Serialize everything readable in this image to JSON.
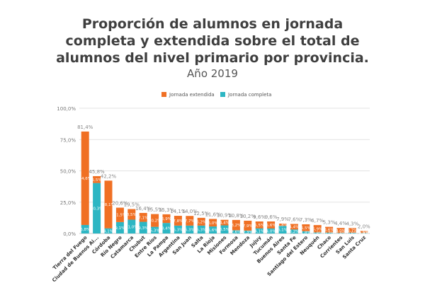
{
  "chart_data": {
    "type": "bar",
    "stacked": true,
    "title_lines": [
      "Proporción de alumnos en jornada",
      "completa y extendida sobre el total de",
      "alumnos del nivel primario por provincia."
    ],
    "subtitle": "Año 2019",
    "ylim": [
      0,
      100
    ],
    "yticks": [
      "0,0%",
      "25,0%",
      "50,0%",
      "75,0%",
      "100,0%"
    ],
    "legend_position": "top",
    "grid": true,
    "categories": [
      "Tierra del Fuego",
      "Ciudad de Buenos Ai...",
      "Córdoba",
      "Río Negro",
      "Catamarca",
      "Chubut",
      "Entre Ríos",
      "La Pampa",
      "Argentina",
      "San Juan",
      "Salta",
      "La Rioja",
      "Misiones",
      "Formosa",
      "Mendoza",
      "Jujuy",
      "Tucumán",
      "Buenos Aires",
      "Santa Fe",
      "Santiago del Estero",
      "Neuquén",
      "Chaco",
      "Corrientes",
      "San Luis",
      "Santa Cruz"
    ],
    "totals": [
      "81,4%",
      "45,8%",
      "42,2%",
      "20,6%",
      "19,5%",
      "16,4%",
      "15,5%",
      "15,3%",
      "14,1%",
      "14,0%",
      "12,5%",
      "11,6%",
      "10,9%",
      "10,8%",
      "10,2%",
      "9,6%",
      "9,6%",
      "7,9%",
      "7,6%",
      "7,3%",
      "6,7%",
      "5,3%",
      "4,4%",
      "4,3%",
      "2,0%"
    ],
    "series": [
      {
        "name": "Jornada extendida",
        "color": "#f07024",
        "values": [
          74.6,
          5.5,
          38.1,
          11.5,
          8.5,
          7.1,
          10.2,
          6.9,
          7.8,
          7.7,
          6.2,
          6.0,
          4.4,
          8.2,
          7.9,
          5.5,
          5.6,
          1.8,
          4.4,
          5.5,
          5.9,
          4.6,
          4.0,
          3.7,
          1.6
        ],
        "labels": [
          "74,6%",
          "5,5%",
          "38,1%",
          "11,5%",
          "8,5%",
          "7,1%",
          "10,2%",
          "6,9%",
          "7,8%",
          "7,7%",
          "6,2%",
          "6,0%",
          "4,4%",
          "8,2%",
          "7,9%",
          "5,5%",
          "5,6%",
          "1,8%",
          "4,4%",
          "5,5%",
          "5,9%",
          "4,6%",
          "4,0%",
          "3,7%",
          "1,6%"
        ]
      },
      {
        "name": "Jornada completa",
        "color": "#2db6c3",
        "values": [
          6.8,
          40.3,
          4.1,
          9.1,
          11.0,
          9.3,
          5.3,
          8.4,
          6.3,
          6.3,
          6.3,
          5.6,
          6.5,
          2.6,
          2.3,
          4.1,
          4.0,
          6.1,
          3.2,
          1.8,
          0.8,
          0.7,
          0.4,
          0.6,
          0.4
        ],
        "labels": [
          "6,8%",
          "40,3%",
          "4,1%",
          "9,1%",
          "11,0%",
          "9,3%",
          "5,3%",
          "8,4%",
          "6,3%",
          "6,3%",
          "6,3%",
          "5,6%",
          "6,5%",
          "2,6%",
          "2,3%",
          "4,1%",
          "4,0%",
          "6,1%",
          "3,2%",
          "1,8%",
          "0,8%",
          "0,7%",
          "0,4%",
          "0,6%",
          "0,4%"
        ]
      }
    ]
  }
}
